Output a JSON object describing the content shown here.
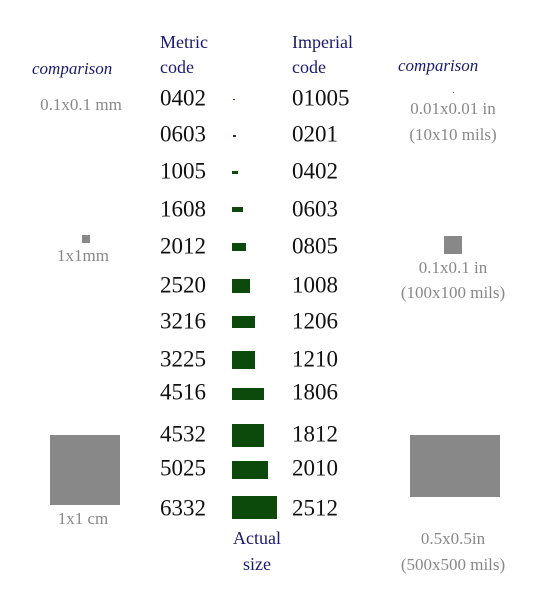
{
  "header": {
    "metric": [
      "Metric",
      "code"
    ],
    "imperial": [
      "Imperial",
      "code"
    ],
    "comparison_left": "comparison",
    "comparison_right": "comparison"
  },
  "rows": [
    {
      "metric": "0402",
      "imperial": "01005"
    },
    {
      "metric": "0603",
      "imperial": "0201"
    },
    {
      "metric": "1005",
      "imperial": "0402"
    },
    {
      "metric": "1608",
      "imperial": "0603"
    },
    {
      "metric": "2012",
      "imperial": "0805"
    },
    {
      "metric": "2520",
      "imperial": "1008"
    },
    {
      "metric": "3216",
      "imperial": "1206"
    },
    {
      "metric": "3225",
      "imperial": "1210"
    },
    {
      "metric": "4516",
      "imperial": "1806"
    },
    {
      "metric": "4532",
      "imperial": "1812"
    },
    {
      "metric": "5025",
      "imperial": "2010"
    },
    {
      "metric": "6332",
      "imperial": "2512"
    }
  ],
  "left_comparisons": [
    "0.1x0.1 mm",
    "1x1mm",
    "1x1 cm"
  ],
  "right_comparisons": [
    [
      "0.01x0.01 in",
      "(10x10 mils)"
    ],
    [
      "0.1x0.1 in",
      "(100x100 mils)"
    ],
    [
      "0.5x0.5in",
      "(500x500 mils)"
    ]
  ],
  "actual_size": [
    "Actual",
    "size"
  ]
}
